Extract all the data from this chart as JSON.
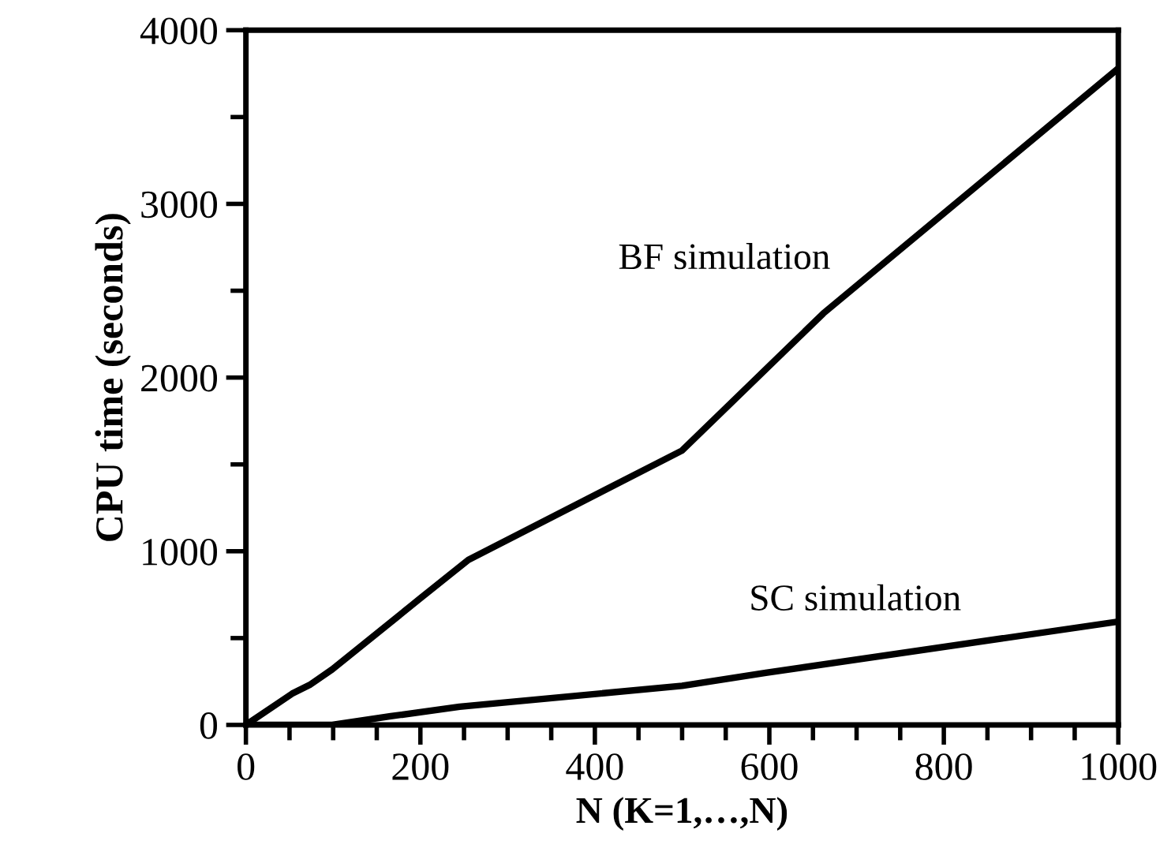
{
  "chart_data": {
    "type": "line",
    "xlabel": "N (K=1,…,N)",
    "ylabel": "CPU time (seconds)",
    "xlim": [
      0,
      1000
    ],
    "ylim": [
      0,
      4000
    ],
    "xticks": [
      0,
      200,
      400,
      600,
      800,
      1000
    ],
    "yticks": [
      0,
      1000,
      2000,
      3000,
      4000
    ],
    "grid": false,
    "legend": false,
    "marker": "none",
    "line_style": "solid",
    "series": [
      {
        "name": "BF simulation",
        "color": "#000000",
        "x": [
          0,
          53,
          73,
          99,
          199,
          255,
          500,
          662,
          1000
        ],
        "values": [
          0,
          180,
          230,
          320,
          725,
          950,
          1580,
          2370,
          3780
        ]
      },
      {
        "name": "SC simulation",
        "color": "#000000",
        "x": [
          0,
          99,
          166,
          245,
          500,
          596,
          1000
        ],
        "values": [
          0,
          0,
          50,
          105,
          225,
          300,
          595
        ]
      }
    ]
  }
}
